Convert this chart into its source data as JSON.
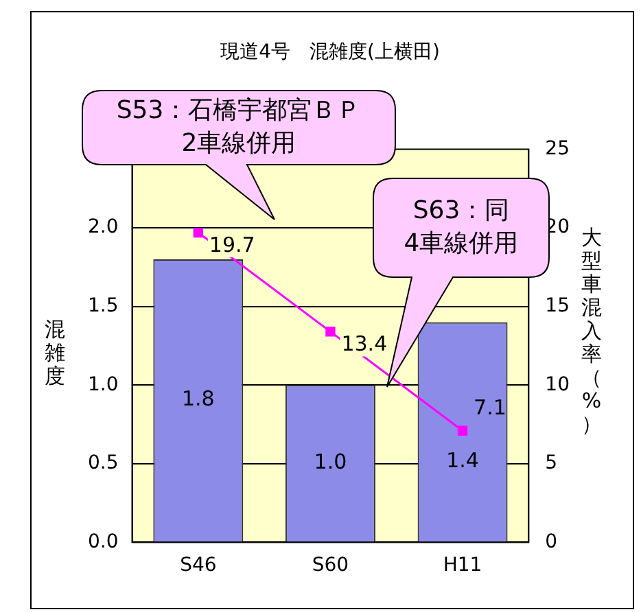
{
  "chart_data": {
    "type": "bar",
    "title": "現道4号　混雑度(上横田)",
    "ylabel": "混雑度",
    "y2label": "大型車混入率（%）",
    "categories": [
      "S46",
      "S60",
      "H11"
    ],
    "series": [
      {
        "color": "#8c8ce8",
        "values": [
          1.8,
          1.0,
          1.4
        ],
        "value_labels": [
          "1.8",
          "1.0",
          "1.4"
        ]
      },
      {
        "type": "line",
        "axis": "y2",
        "color": "#ff00ff",
        "values": [
          19.7,
          13.4,
          7.1
        ],
        "value_labels": [
          "19.7",
          "13.4",
          "7.1"
        ],
        "marker": "square"
      }
    ],
    "ylim": [
      0,
      2.5
    ],
    "yticks": [
      {
        "value": 0,
        "label": "0.0"
      },
      {
        "value": 0.5,
        "label": "0.5"
      },
      {
        "value": 1,
        "label": "1.0"
      },
      {
        "value": 1.5,
        "label": "1.5"
      },
      {
        "value": 2,
        "label": "2.0"
      }
    ],
    "y2lim": [
      0,
      25
    ],
    "y2ticks": [
      0,
      5,
      10,
      15,
      20,
      25
    ],
    "grid": "y",
    "legend": false,
    "annotations": [
      "S53：石橋宇都宮ＢＰ\n2車線併用",
      "S63：同\n4車線併用"
    ]
  }
}
